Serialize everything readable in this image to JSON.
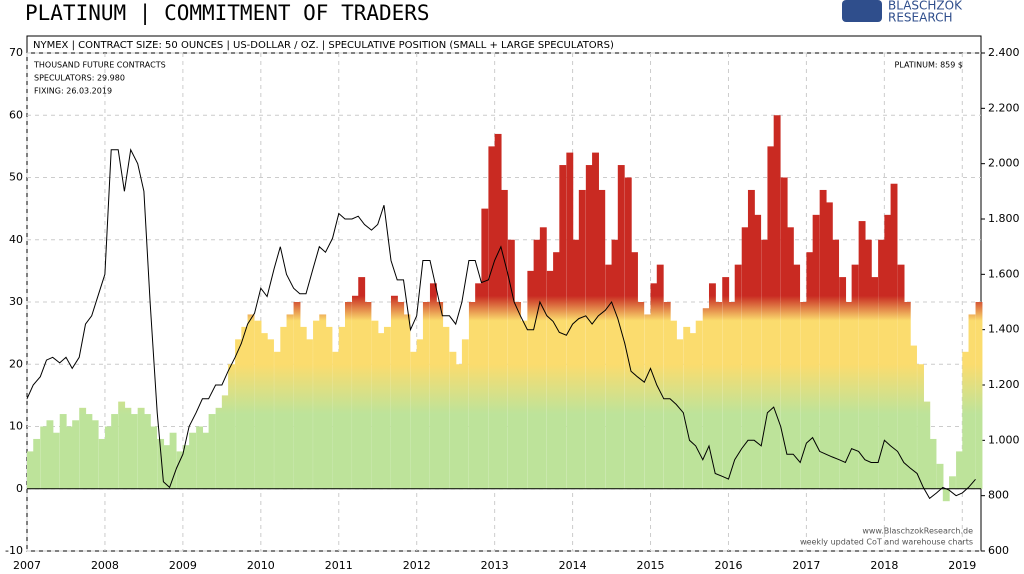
{
  "chart_data": {
    "type": "bar-line",
    "title": "PLATINUM | COMMITMENT OF TRADERS",
    "subtitle": "NYMEX | CONTRACT SIZE: 50 OUNCES | US-DOLLAR / OZ. | SPECULATIVE POSITION (SMALL + LARGE SPECULATORS)",
    "logo": [
      "BLASCHZOK",
      "RESEARCH"
    ],
    "annotations": [
      "THOUSAND FUTURE CONTRACTS",
      "SPECULATORS: 29.980",
      "FIXING: 26.03.2019"
    ],
    "price_annotation": "PLATINUM: 859 $",
    "footer": [
      "www.BlaschzokResearch.de",
      "weekly updated CoT and warehouse charts"
    ],
    "x": [
      2007.0,
      2007.08,
      2007.17,
      2007.25,
      2007.33,
      2007.42,
      2007.5,
      2007.58,
      2007.67,
      2007.75,
      2007.83,
      2007.92,
      2008.0,
      2008.08,
      2008.17,
      2008.25,
      2008.33,
      2008.42,
      2008.5,
      2008.58,
      2008.67,
      2008.75,
      2008.83,
      2008.92,
      2009.0,
      2009.08,
      2009.17,
      2009.25,
      2009.33,
      2009.42,
      2009.5,
      2009.58,
      2009.67,
      2009.75,
      2009.83,
      2009.92,
      2010.0,
      2010.08,
      2010.17,
      2010.25,
      2010.33,
      2010.42,
      2010.5,
      2010.58,
      2010.67,
      2010.75,
      2010.83,
      2010.92,
      2011.0,
      2011.08,
      2011.17,
      2011.25,
      2011.33,
      2011.42,
      2011.5,
      2011.58,
      2011.67,
      2011.75,
      2011.83,
      2011.92,
      2012.0,
      2012.08,
      2012.17,
      2012.25,
      2012.33,
      2012.42,
      2012.5,
      2012.58,
      2012.67,
      2012.75,
      2012.83,
      2012.92,
      2013.0,
      2013.08,
      2013.17,
      2013.25,
      2013.33,
      2013.42,
      2013.5,
      2013.58,
      2013.67,
      2013.75,
      2013.83,
      2013.92,
      2014.0,
      2014.08,
      2014.17,
      2014.25,
      2014.33,
      2014.42,
      2014.5,
      2014.58,
      2014.67,
      2014.75,
      2014.83,
      2014.92,
      2015.0,
      2015.08,
      2015.17,
      2015.25,
      2015.33,
      2015.42,
      2015.5,
      2015.58,
      2015.67,
      2015.75,
      2015.83,
      2015.92,
      2016.0,
      2016.08,
      2016.17,
      2016.25,
      2016.33,
      2016.42,
      2016.5,
      2016.58,
      2016.67,
      2016.75,
      2016.83,
      2016.92,
      2017.0,
      2017.08,
      2017.17,
      2017.25,
      2017.33,
      2017.42,
      2017.5,
      2017.58,
      2017.67,
      2017.75,
      2017.83,
      2017.92,
      2018.0,
      2018.08,
      2018.17,
      2018.25,
      2018.33,
      2018.42,
      2018.5,
      2018.58,
      2018.67,
      2018.75,
      2018.83,
      2018.92,
      2019.0,
      2019.08,
      2019.17
    ],
    "series": [
      {
        "type": "bar",
        "color_stops": [
          {
            "value": -10,
            "color": "#bde39a"
          },
          {
            "value": 12,
            "color": "#bde39a"
          },
          {
            "value": 20,
            "color": "#fbdc6e"
          },
          {
            "value": 27,
            "color": "#fbdc6e"
          },
          {
            "value": 31,
            "color": "#c92a22"
          },
          {
            "value": 70,
            "color": "#c92a22"
          }
        ],
        "values": [
          6,
          8,
          10,
          11,
          9,
          12,
          10,
          11,
          13,
          12,
          11,
          8,
          10,
          12,
          14,
          13,
          12,
          13,
          12,
          10,
          8,
          7,
          9,
          6,
          7,
          9,
          10,
          9,
          12,
          13,
          15,
          20,
          24,
          26,
          28,
          27,
          25,
          24,
          22,
          26,
          28,
          30,
          26,
          24,
          27,
          28,
          26,
          22,
          26,
          30,
          31,
          34,
          30,
          27,
          25,
          26,
          31,
          30,
          28,
          22,
          24,
          30,
          33,
          30,
          26,
          22,
          20,
          24,
          30,
          33,
          45,
          55,
          57,
          48,
          40,
          30,
          27,
          35,
          40,
          42,
          35,
          38,
          52,
          54,
          40,
          48,
          52,
          54,
          48,
          36,
          40,
          52,
          50,
          38,
          30,
          28,
          33,
          36,
          30,
          27,
          24,
          26,
          25,
          27,
          29,
          33,
          30,
          34,
          30,
          36,
          42,
          48,
          44,
          40,
          55,
          60,
          50,
          42,
          36,
          30,
          38,
          44,
          48,
          46,
          40,
          34,
          30,
          36,
          43,
          40,
          34,
          40,
          44,
          49,
          36,
          30,
          23,
          20,
          14,
          8,
          4,
          -2,
          2,
          6,
          22,
          28,
          30
        ]
      },
      {
        "type": "line",
        "axis": "y2",
        "color": "#000000",
        "values": [
          1150,
          1200,
          1230,
          1290,
          1300,
          1280,
          1300,
          1260,
          1300,
          1420,
          1450,
          1530,
          1600,
          2050,
          2050,
          1900,
          2050,
          2000,
          1900,
          1500,
          1100,
          850,
          830,
          900,
          950,
          1050,
          1100,
          1150,
          1150,
          1200,
          1200,
          1250,
          1300,
          1350,
          1420,
          1460,
          1550,
          1520,
          1620,
          1700,
          1600,
          1550,
          1530,
          1530,
          1620,
          1700,
          1680,
          1730,
          1820,
          1800,
          1800,
          1810,
          1780,
          1760,
          1780,
          1850,
          1650,
          1580,
          1580,
          1400,
          1450,
          1650,
          1650,
          1550,
          1450,
          1450,
          1420,
          1500,
          1650,
          1650,
          1570,
          1580,
          1650,
          1700,
          1600,
          1500,
          1450,
          1400,
          1400,
          1500,
          1450,
          1430,
          1390,
          1380,
          1420,
          1440,
          1450,
          1420,
          1450,
          1470,
          1500,
          1440,
          1350,
          1250,
          1230,
          1210,
          1260,
          1200,
          1150,
          1150,
          1130,
          1100,
          1000,
          980,
          930,
          980,
          880,
          870,
          860,
          930,
          970,
          1000,
          1000,
          980,
          1100,
          1120,
          1050,
          950,
          950,
          920,
          990,
          1010,
          960,
          950,
          940,
          930,
          920,
          970,
          960,
          930,
          920,
          920,
          1000,
          980,
          960,
          920,
          900,
          880,
          830,
          790,
          810,
          830,
          820,
          800,
          810,
          830,
          859
        ]
      }
    ],
    "xlim": [
      2007,
      2019.24
    ],
    "xticks": [
      2007,
      2008,
      2009,
      2010,
      2011,
      2012,
      2013,
      2014,
      2015,
      2016,
      2017,
      2018,
      2019
    ],
    "ylim": [
      -10,
      70
    ],
    "yticks": [
      -10,
      0,
      10,
      20,
      30,
      40,
      50,
      60,
      70
    ],
    "y2lim": [
      600,
      2400
    ],
    "y2ticks": [
      600,
      800,
      {
        "value": 1000,
        "label": "1.000"
      },
      {
        "value": 1200,
        "label": "1.200"
      },
      {
        "value": 1400,
        "label": "1.400"
      },
      {
        "value": 1600,
        "label": "1.600"
      },
      {
        "value": 1800,
        "label": "1.800"
      },
      {
        "value": 2000,
        "label": "2.000"
      },
      {
        "value": 2200,
        "label": "2.200"
      },
      {
        "value": 2400,
        "label": "2.400"
      }
    ],
    "grid": true
  }
}
